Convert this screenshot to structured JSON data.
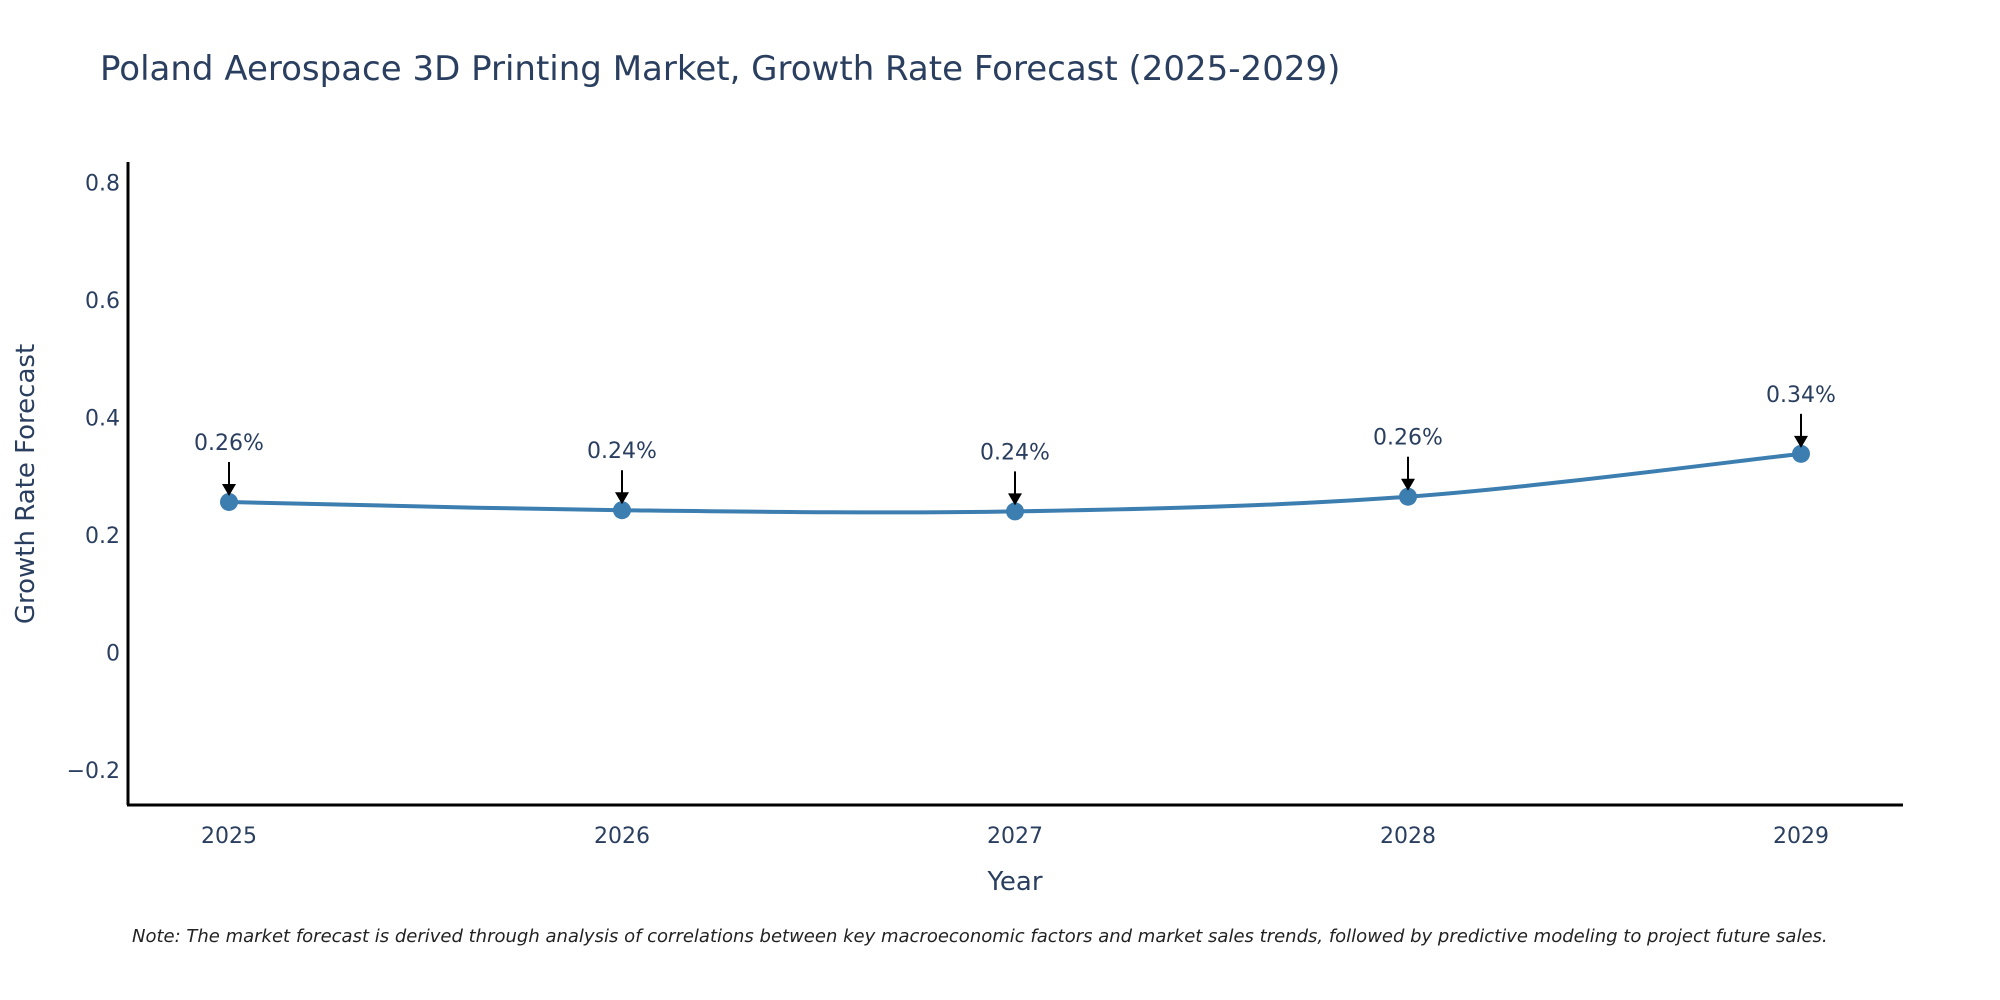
{
  "chart_data": {
    "type": "line",
    "title": "Poland Aerospace 3D Printing Market, Growth Rate Forecast (2025-2029)",
    "xlabel": "Year",
    "ylabel": "Growth Rate Forecast",
    "x": [
      "2025",
      "2026",
      "2027",
      "2028",
      "2029"
    ],
    "values": [
      0.256,
      0.242,
      0.24,
      0.265,
      0.338
    ],
    "data_labels": [
      "0.26%",
      "0.24%",
      "0.24%",
      "0.26%",
      "0.34%"
    ],
    "yticks": [
      -0.2,
      0,
      0.2,
      0.4,
      0.6,
      0.8
    ],
    "ytick_labels": [
      "−0.2",
      "0",
      "0.2",
      "0.4",
      "0.6",
      "0.8"
    ],
    "ylim": [
      -0.26,
      0.835
    ],
    "grid": false,
    "line_color": "#3d7eb0",
    "note": "Note: The market forecast is derived through analysis of correlations between key macroeconomic factors and market sales trends, followed by predictive modeling to project future sales."
  }
}
